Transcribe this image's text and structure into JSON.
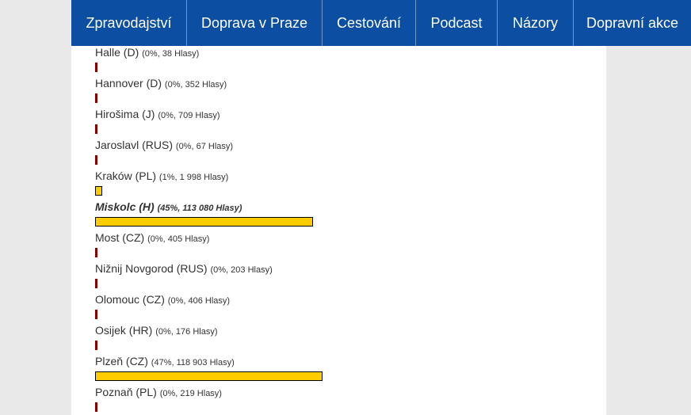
{
  "nav": {
    "items": [
      {
        "id": "zpravodajstvi",
        "label": "Zpravodajství"
      },
      {
        "id": "doprava-v-praze",
        "label": "Doprava v Praze"
      },
      {
        "id": "cestovani",
        "label": "Cestování"
      },
      {
        "id": "podcast",
        "label": "Podcast"
      },
      {
        "id": "nazory",
        "label": "Názory"
      },
      {
        "id": "dopravni-akce",
        "label": "Dopravní akce"
      }
    ]
  },
  "poll": {
    "options": [
      {
        "name": "Halle (D)",
        "meta": "(0%, 38 Hlasy)",
        "percent": 0
      },
      {
        "name": "Hannover (D)",
        "meta": "(0%, 352 Hlasy)",
        "percent": 0
      },
      {
        "name": "Hirošima (J)",
        "meta": "(0%, 709 Hlasy)",
        "percent": 0
      },
      {
        "name": "Jaroslavl (RUS)",
        "meta": "(0%, 67 Hlasy)",
        "percent": 0
      },
      {
        "name": "Kraków (PL)",
        "meta": "(1%, 1 998 Hlasy)",
        "percent": 1
      },
      {
        "name": "Miskolc (H)",
        "meta": "(45%, 113 080 Hlasy)",
        "percent": 45,
        "highlighted": true
      },
      {
        "name": "Most (CZ)",
        "meta": "(0%, 405 Hlasy)",
        "percent": 0
      },
      {
        "name": "Nižnij Novgorod (RUS)",
        "meta": "(0%, 203 Hlasy)",
        "percent": 0
      },
      {
        "name": "Olomouc (CZ)",
        "meta": "(0%, 406 Hlasy)",
        "percent": 0
      },
      {
        "name": "Osijek (HR)",
        "meta": "(0%, 176 Hlasy)",
        "percent": 0
      },
      {
        "name": "Plzeň (CZ)",
        "meta": "(47%, 118 903 Hlasy)",
        "percent": 47
      },
      {
        "name": "Poznaň (PL)",
        "meta": "(0%, 219 Hlasy)",
        "percent": 0
      }
    ],
    "bar_fill_color": "#ffcc00",
    "bar_zero_color": "#8b0000"
  }
}
